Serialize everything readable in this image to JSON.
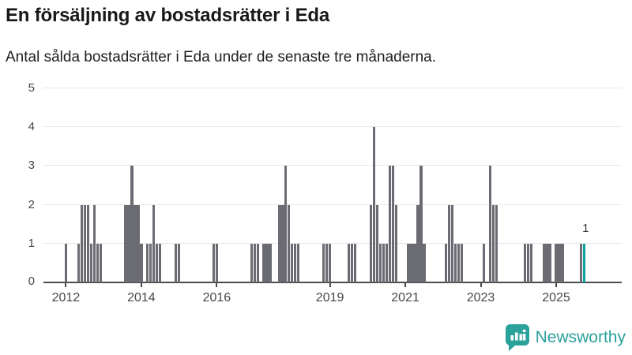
{
  "header": {
    "title": "En försäljning av bostadsrätter i Eda",
    "subtitle": "Antal sålda bostadsrätter i Eda under de senaste tre månaderna."
  },
  "footer": {
    "brand": "Newsworthy",
    "logo_icon": "bar-chart-speech-bubble",
    "brand_color": "#2ba19c"
  },
  "colors": {
    "bar": "#6b6b73",
    "highlight": "#0aa49e",
    "gridline": "#e7e7e9",
    "axis": "#4b4b4b",
    "tick_text": "#474747",
    "title_text": "#191919"
  },
  "chart_data": {
    "type": "bar",
    "title": "En försäljning av bostadsrätter i Eda",
    "subtitle": "Antal sålda bostadsrätter i Eda under de senaste tre månaderna.",
    "xlabel": "",
    "ylabel": "",
    "ylim": [
      0,
      5
    ],
    "yticks": [
      0,
      1,
      2,
      3,
      4,
      5
    ],
    "grid": true,
    "x_unit": "month",
    "x_range_start": "2011-06",
    "x_range_end": "2026-09",
    "xticks": [
      {
        "label": "2012",
        "month": "2012-01"
      },
      {
        "label": "2014",
        "month": "2014-01"
      },
      {
        "label": "2016",
        "month": "2016-01"
      },
      {
        "label": "2019",
        "month": "2019-01"
      },
      {
        "label": "2021",
        "month": "2021-01"
      },
      {
        "label": "2023",
        "month": "2023-01"
      },
      {
        "label": "2025",
        "month": "2025-01"
      }
    ],
    "values": [
      {
        "month": "2012-01",
        "value": 1
      },
      {
        "month": "2012-05",
        "value": 1
      },
      {
        "month": "2012-06",
        "value": 2
      },
      {
        "month": "2012-07",
        "value": 2
      },
      {
        "month": "2012-08",
        "value": 2
      },
      {
        "month": "2012-09",
        "value": 1
      },
      {
        "month": "2012-10",
        "value": 2
      },
      {
        "month": "2012-11",
        "value": 1
      },
      {
        "month": "2012-12",
        "value": 1
      },
      {
        "month": "2013-08",
        "value": 2
      },
      {
        "month": "2013-09",
        "value": 2
      },
      {
        "month": "2013-10",
        "value": 3
      },
      {
        "month": "2013-11",
        "value": 2
      },
      {
        "month": "2013-12",
        "value": 2
      },
      {
        "month": "2014-01",
        "value": 1
      },
      {
        "month": "2014-03",
        "value": 1
      },
      {
        "month": "2014-04",
        "value": 1
      },
      {
        "month": "2014-05",
        "value": 2
      },
      {
        "month": "2014-06",
        "value": 1
      },
      {
        "month": "2014-07",
        "value": 1
      },
      {
        "month": "2014-12",
        "value": 1
      },
      {
        "month": "2015-01",
        "value": 1
      },
      {
        "month": "2015-12",
        "value": 1
      },
      {
        "month": "2016-01",
        "value": 1
      },
      {
        "month": "2016-12",
        "value": 1
      },
      {
        "month": "2017-01",
        "value": 1
      },
      {
        "month": "2017-02",
        "value": 1
      },
      {
        "month": "2017-04",
        "value": 1
      },
      {
        "month": "2017-05",
        "value": 1
      },
      {
        "month": "2017-06",
        "value": 1
      },
      {
        "month": "2017-09",
        "value": 2
      },
      {
        "month": "2017-10",
        "value": 2
      },
      {
        "month": "2017-11",
        "value": 3
      },
      {
        "month": "2017-12",
        "value": 2
      },
      {
        "month": "2018-01",
        "value": 1
      },
      {
        "month": "2018-02",
        "value": 1
      },
      {
        "month": "2018-03",
        "value": 1
      },
      {
        "month": "2018-11",
        "value": 1
      },
      {
        "month": "2018-12",
        "value": 1
      },
      {
        "month": "2019-01",
        "value": 1
      },
      {
        "month": "2019-07",
        "value": 1
      },
      {
        "month": "2019-08",
        "value": 1
      },
      {
        "month": "2019-09",
        "value": 1
      },
      {
        "month": "2020-02",
        "value": 2
      },
      {
        "month": "2020-03",
        "value": 4
      },
      {
        "month": "2020-04",
        "value": 2
      },
      {
        "month": "2020-05",
        "value": 1
      },
      {
        "month": "2020-06",
        "value": 1
      },
      {
        "month": "2020-07",
        "value": 1
      },
      {
        "month": "2020-08",
        "value": 3
      },
      {
        "month": "2020-09",
        "value": 3
      },
      {
        "month": "2020-10",
        "value": 2
      },
      {
        "month": "2021-02",
        "value": 1
      },
      {
        "month": "2021-03",
        "value": 1
      },
      {
        "month": "2021-04",
        "value": 1
      },
      {
        "month": "2021-05",
        "value": 2
      },
      {
        "month": "2021-06",
        "value": 3
      },
      {
        "month": "2021-07",
        "value": 1
      },
      {
        "month": "2022-02",
        "value": 1
      },
      {
        "month": "2022-03",
        "value": 2
      },
      {
        "month": "2022-04",
        "value": 2
      },
      {
        "month": "2022-05",
        "value": 1
      },
      {
        "month": "2022-06",
        "value": 1
      },
      {
        "month": "2022-07",
        "value": 1
      },
      {
        "month": "2023-02",
        "value": 1
      },
      {
        "month": "2023-04",
        "value": 3
      },
      {
        "month": "2023-05",
        "value": 2
      },
      {
        "month": "2023-06",
        "value": 2
      },
      {
        "month": "2024-03",
        "value": 1
      },
      {
        "month": "2024-04",
        "value": 1
      },
      {
        "month": "2024-05",
        "value": 1
      },
      {
        "month": "2024-09",
        "value": 1
      },
      {
        "month": "2024-10",
        "value": 1
      },
      {
        "month": "2024-11",
        "value": 1
      },
      {
        "month": "2025-01",
        "value": 1
      },
      {
        "month": "2025-02",
        "value": 1
      },
      {
        "month": "2025-03",
        "value": 1
      },
      {
        "month": "2025-09",
        "value": 1
      },
      {
        "month": "2025-10",
        "value": 1
      }
    ],
    "highlight": {
      "month": "2025-10",
      "value": 1,
      "label": "1"
    },
    "legend": null
  }
}
